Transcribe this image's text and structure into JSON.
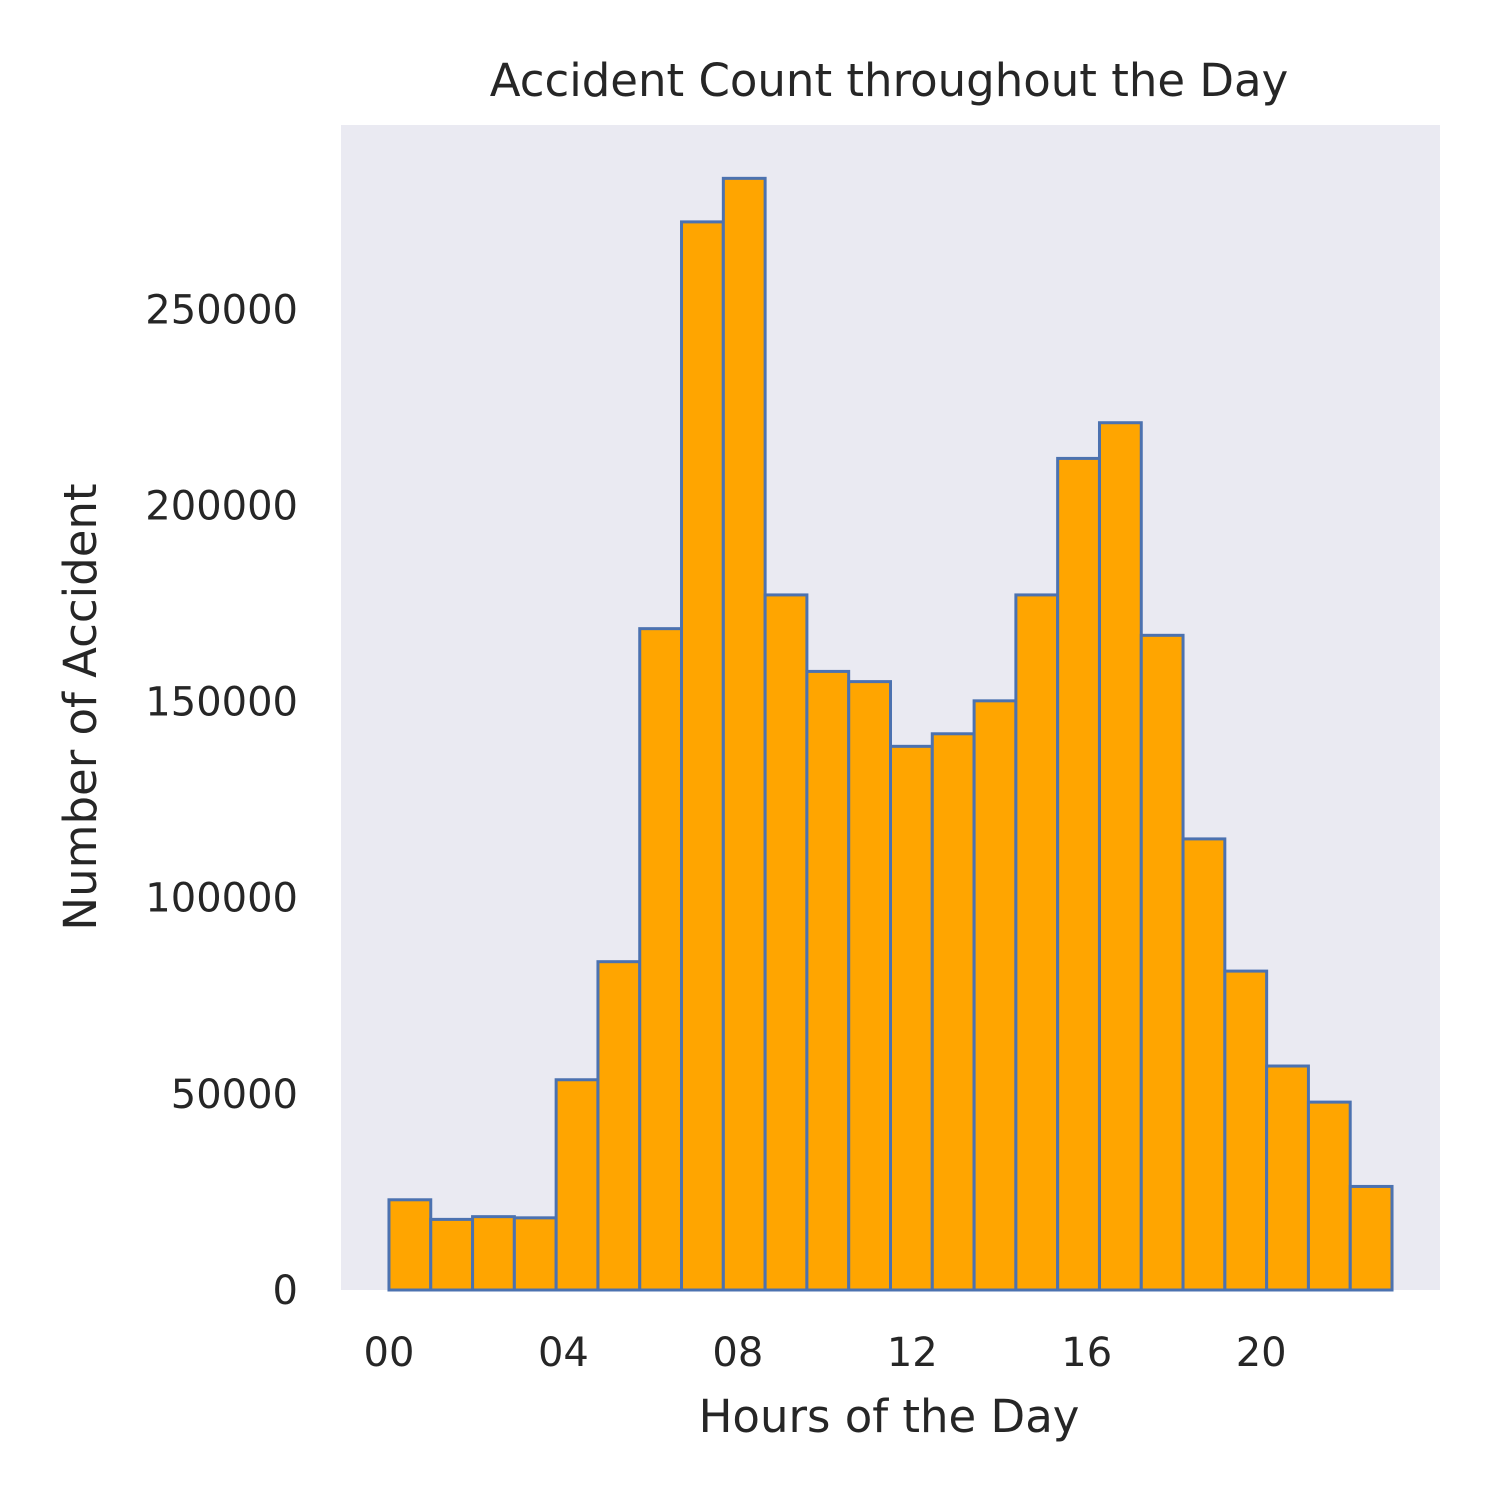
{
  "chart_data": {
    "type": "bar",
    "title": "Accident Count throughout the Day",
    "xlabel": "Hours of the Day",
    "ylabel": "Number of Accident",
    "x_tick_labels": [
      "00",
      "04",
      "08",
      "12",
      "16",
      "20"
    ],
    "x_ticks": [
      0,
      4,
      8,
      12,
      16,
      20
    ],
    "y_ticks": [
      0,
      50000,
      100000,
      150000,
      200000,
      250000
    ],
    "y_tick_labels": [
      "0",
      "50000",
      "100000",
      "150000",
      "200000",
      "250000"
    ],
    "xlim": [
      -1.1,
      24.1
    ],
    "ylim": [
      0,
      297000
    ],
    "bin_width": 0.958,
    "bin_starts": [
      0,
      0.958,
      1.917,
      2.875,
      3.833,
      4.792,
      5.75,
      6.708,
      7.667,
      8.625,
      9.583,
      10.542,
      11.5,
      12.458,
      13.417,
      14.375,
      15.333,
      16.292,
      17.25,
      18.208,
      19.167,
      20.125,
      21.083,
      22.042
    ],
    "values": [
      23000,
      18000,
      18700,
      18400,
      53600,
      83700,
      168600,
      272300,
      283400,
      177200,
      157700,
      155100,
      138600,
      141800,
      150200,
      177200,
      212000,
      221100,
      166900,
      115000,
      81300,
      57100,
      47900,
      26400
    ],
    "grid": false,
    "colors": {
      "bar_fill": "#FFA500",
      "bar_edge": "#4C72B0",
      "plot_background": "#EAEAF2"
    }
  }
}
